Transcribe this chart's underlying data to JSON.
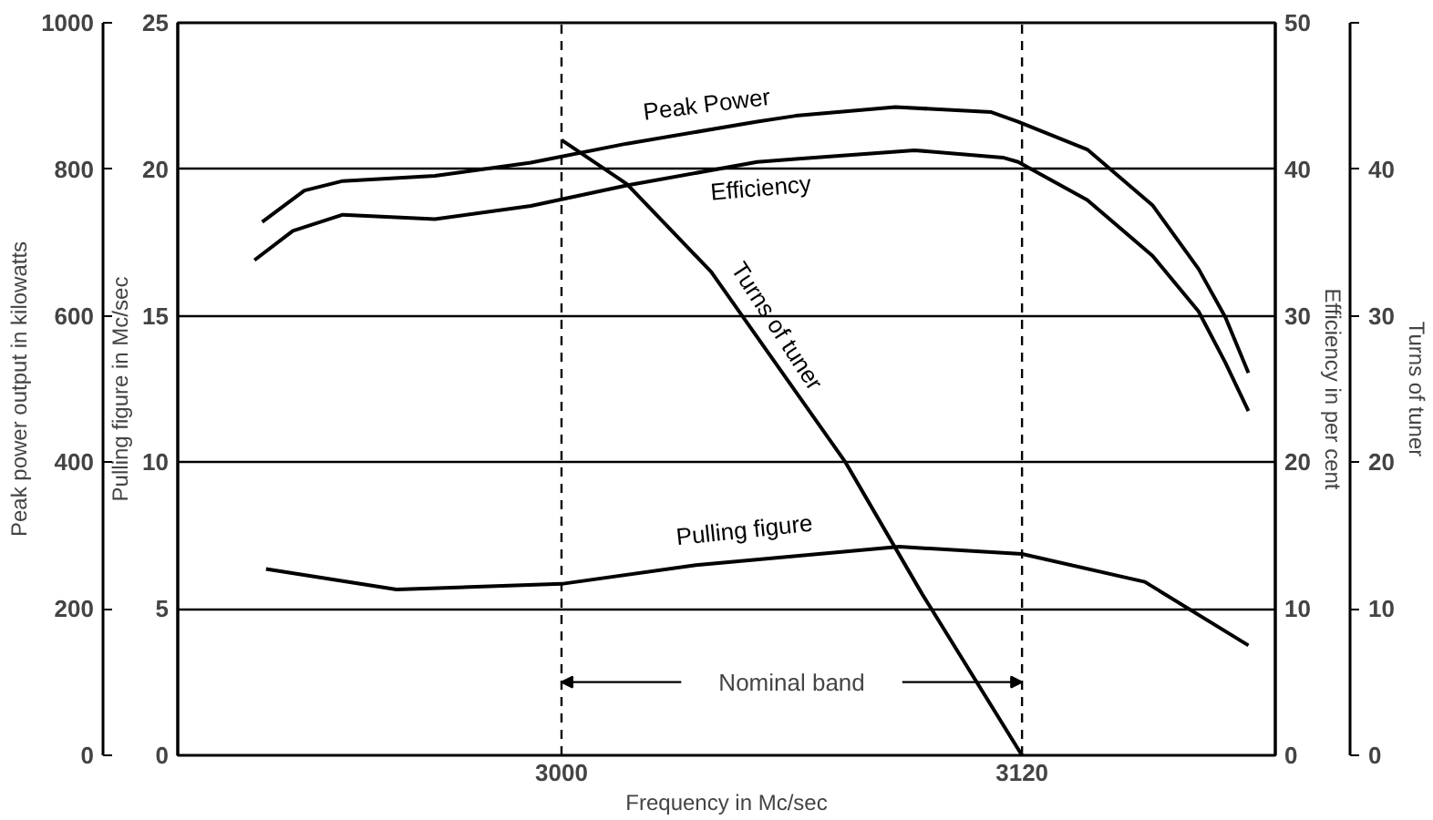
{
  "chart_data": {
    "type": "line",
    "xlabel": "Frequency in Mc/sec",
    "ylabel": "Peak power output in kilowatts",
    "y2label": "Pulling figure in Mc/sec",
    "y3label": "Efficiency in per cent",
    "xlim": [
      2900,
      3186
    ],
    "xticks": [
      3000,
      3120
    ],
    "ylim": [
      0,
      1000
    ],
    "yticks": [
      0,
      200,
      400,
      600,
      800,
      1000
    ],
    "y2lim": [
      0,
      25
    ],
    "y2ticks": [
      0,
      5,
      10,
      15,
      20,
      25
    ],
    "y3lim": [
      0,
      50
    ],
    "y3ticks": [
      0,
      10,
      20,
      30,
      40,
      50
    ],
    "grid": "y",
    "marker": "none",
    "line_style": "solid",
    "series": [
      {
        "name": "Peak Power",
        "color": "#000000",
        "x": [
          2922,
          2933,
          2943,
          2967,
          2992,
          3017,
          3051,
          3061,
          3087,
          3112,
          3119,
          3137,
          3154,
          3166,
          3173,
          3179
        ],
        "values": [
          728,
          771,
          784,
          791,
          809,
          835,
          865,
          873,
          885,
          878,
          865,
          827,
          751,
          664,
          598,
          522
        ]
      },
      {
        "name": "Efficiency",
        "color": "#000000",
        "axis": "y3",
        "x": [
          2920,
          2930,
          2943,
          2967,
          2992,
          3017,
          3051,
          3061,
          3092,
          3115,
          3119,
          3137,
          3154,
          3166,
          3173,
          3179
        ],
        "values": [
          33.8,
          35.8,
          36.9,
          36.6,
          37.5,
          38.9,
          40.5,
          40.7,
          41.3,
          40.8,
          40.5,
          37.9,
          34.1,
          30.3,
          26.8,
          23.5
        ]
      },
      {
        "name": "Turns of tuner",
        "color": "#000000",
        "axis": "y3",
        "x": [
          3000,
          3017,
          3039,
          3074,
          3094,
          3120
        ],
        "values": [
          42,
          39,
          33,
          20,
          11,
          0
        ]
      },
      {
        "name": "Pulling figure",
        "color": "#000000",
        "axis": "y2",
        "x": [
          2923,
          2957,
          3000,
          3035,
          3088,
          3120,
          3152,
          3179
        ],
        "values": [
          6.36,
          5.66,
          5.85,
          6.49,
          7.12,
          6.87,
          5.92,
          3.75
        ]
      }
    ],
    "ref_lines": [
      {
        "axis": "x",
        "value": 3000,
        "line_style": "dashed"
      },
      {
        "axis": "x",
        "value": 3120,
        "line_style": "dashed"
      }
    ],
    "annotations": [
      "Nominal band",
      "Turns of tuner",
      "0",
      "10",
      "20",
      "30",
      "40"
    ]
  }
}
